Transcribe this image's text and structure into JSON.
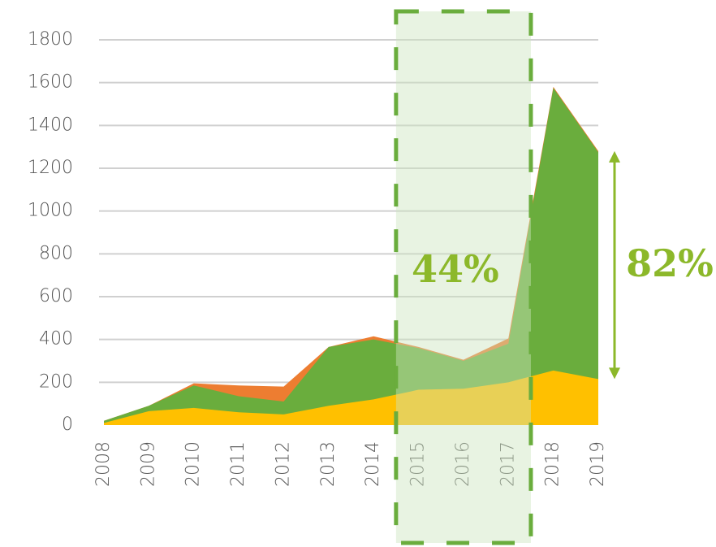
{
  "chart_data": {
    "type": "area",
    "x": [
      2008,
      2009,
      2010,
      2011,
      2012,
      2013,
      2014,
      2015,
      2016,
      2017,
      2018,
      2019
    ],
    "xticks": [
      2008,
      2009,
      2010,
      2011,
      2012,
      2013,
      2014,
      2015,
      2016,
      2017,
      2018,
      2019
    ],
    "series": [
      {
        "color": "#ed7d31",
        "values": [
          20,
          90,
          195,
          185,
          180,
          365,
          415,
          365,
          305,
          405,
          1580,
          1280
        ]
      },
      {
        "color": "#6aad3d",
        "values": [
          20,
          90,
          185,
          135,
          110,
          365,
          400,
          360,
          300,
          380,
          1575,
          1275
        ]
      },
      {
        "color": "#ffc000",
        "values": [
          10,
          65,
          80,
          60,
          50,
          90,
          120,
          165,
          170,
          200,
          255,
          215
        ]
      }
    ],
    "ylim": [
      0,
      1800
    ],
    "yticks": [
      0,
      200,
      400,
      600,
      800,
      1000,
      1200,
      1400,
      1600,
      1800
    ],
    "grid": true,
    "highlight_range": [
      2014.5,
      2017.5
    ],
    "annotations": [
      {
        "text": "44%"
      },
      {
        "text": "82%"
      }
    ]
  }
}
